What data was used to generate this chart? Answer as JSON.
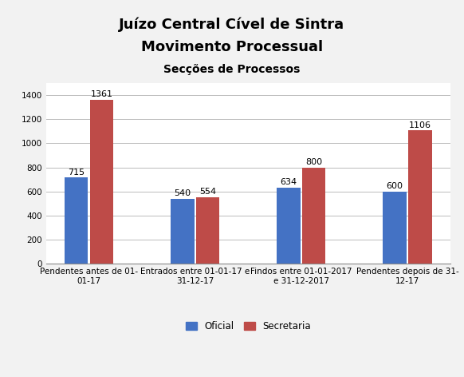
{
  "title_line1": "Juízo Central Cível de Sintra",
  "title_line2": "Movimento Processual",
  "subtitle": "Secções de Processos",
  "categories": [
    "Pendentes antes de 01-\n01-17",
    "Entrados entre 01-01-17 e\n31-12-17",
    "Findos entre 01-01-2017\ne 31-12-2017",
    "Pendentes depois de 31-\n12-17"
  ],
  "oficial_values": [
    715,
    540,
    634,
    600
  ],
  "secretaria_values": [
    1361,
    554,
    800,
    1106
  ],
  "color_oficial": "#4472C4",
  "color_secretaria": "#BE4B48",
  "ylim": [
    0,
    1500
  ],
  "yticks": [
    0,
    200,
    400,
    600,
    800,
    1000,
    1200,
    1400
  ],
  "legend_labels": [
    "Oficial",
    "Secretaria"
  ],
  "background_color": "#F2F2F2",
  "plot_bg_color": "#FFFFFF",
  "bar_width": 0.22,
  "bar_gap": 0.02,
  "label_fontsize": 8,
  "tick_fontsize": 7.5,
  "title_fontsize": 13,
  "subtitle_fontsize": 10
}
